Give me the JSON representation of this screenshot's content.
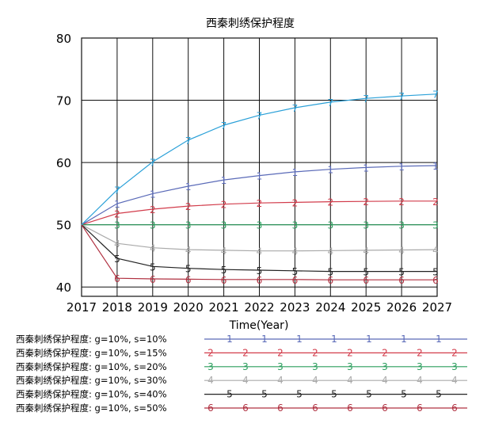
{
  "chart_data": {
    "type": "line",
    "title": "西秦刺绣保护程度",
    "xlabel": "Time(Year)",
    "ylabel": "",
    "x": [
      2017,
      2018,
      2019,
      2020,
      2021,
      2022,
      2023,
      2024,
      2025,
      2026,
      2027
    ],
    "xlim": [
      2017,
      2027
    ],
    "ylim": [
      38.5,
      80
    ],
    "yticks": [
      40,
      50,
      60,
      70,
      80
    ],
    "grid": true,
    "legend_position": "bottom-left",
    "series": [
      {
        "name": "西秦刺绣保护程度: g=10%, s=10%",
        "marker": "1",
        "color": "#5a6ab8",
        "values": [
          50,
          53.4,
          55.0,
          56.2,
          57.2,
          57.9,
          58.5,
          58.9,
          59.2,
          59.4,
          59.5
        ]
      },
      {
        "name": "西秦刺绣保护程度: g=10%, s=15%",
        "marker": "2",
        "color": "#d23c4b",
        "values": [
          50,
          51.8,
          52.5,
          53.0,
          53.3,
          53.5,
          53.6,
          53.7,
          53.75,
          53.8,
          53.8
        ]
      },
      {
        "name": "西秦刺绣保护程度: g=10%, s=20%",
        "marker": "3",
        "color": "#2a9d5c",
        "values": [
          50,
          50,
          50,
          50,
          50,
          50,
          50,
          50,
          50,
          50,
          50
        ]
      },
      {
        "name": "西秦刺绣保护程度: g=10%, s=30%",
        "marker": "4",
        "color": "#aaaaaa",
        "values": [
          50,
          47.0,
          46.3,
          46.0,
          45.9,
          45.8,
          45.8,
          45.85,
          45.9,
          45.95,
          46.0
        ]
      },
      {
        "name": "西秦刺绣保护程度: g=10%, s=40%",
        "marker": "5",
        "color": "#222222",
        "values": [
          50,
          44.6,
          43.3,
          43.0,
          42.8,
          42.7,
          42.6,
          42.5,
          42.5,
          42.5,
          42.5
        ]
      },
      {
        "name": "西秦刺绣保护程度: g=10%, s=50%",
        "marker": "6",
        "color": "#b03040",
        "values": [
          50,
          41.4,
          41.3,
          41.25,
          41.2,
          41.2,
          41.2,
          41.15,
          41.15,
          41.15,
          41.15
        ]
      },
      {
        "name": "",
        "marker": "7",
        "color": "#2aa0d8",
        "values": [
          50,
          55.6,
          60.1,
          63.6,
          66.0,
          67.6,
          68.8,
          69.7,
          70.3,
          70.7,
          71.0
        ]
      }
    ]
  }
}
